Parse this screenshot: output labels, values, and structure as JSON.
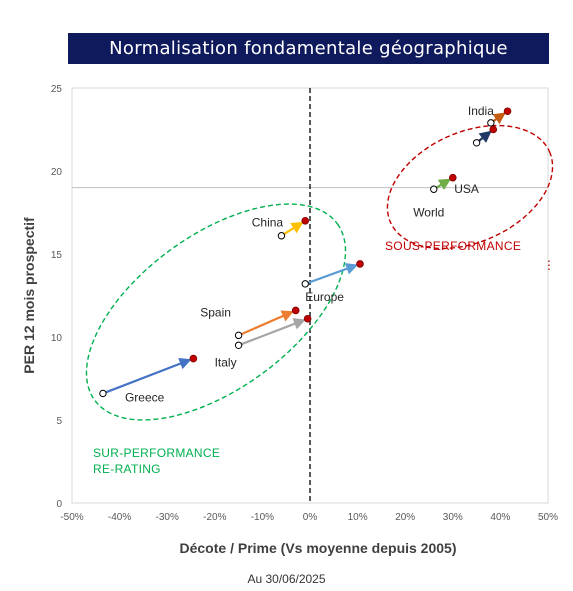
{
  "chart_data": {
    "type": "scatter",
    "title": "Normalisation fondamentale géographique",
    "xlabel": "Décote / Prime (Vs moyenne depuis 2005)",
    "ylabel": "PER 12 mois prospectif",
    "xlim": [
      -0.5,
      0.5
    ],
    "ylim": [
      0,
      25
    ],
    "x_ticks": [
      -0.5,
      -0.4,
      -0.3,
      -0.2,
      -0.1,
      0,
      0.1,
      0.2,
      0.3,
      0.4,
      0.5
    ],
    "x_tick_labels": [
      "-50%",
      "-40%",
      "-30%",
      "-20%",
      "-10%",
      "0%",
      "10%",
      "20%",
      "30%",
      "40%",
      "50%"
    ],
    "y_ticks": [
      0,
      5,
      10,
      15,
      20,
      25
    ],
    "y_tick_labels": [
      "0",
      "5",
      "10",
      "15",
      "20",
      "25"
    ],
    "grid": false,
    "reference_lines": {
      "vertical_x": 0,
      "horizontal_y": 19
    },
    "series": [
      {
        "name": "India",
        "from": [
          0.38,
          22.9
        ],
        "to": [
          0.415,
          23.6
        ],
        "color": "#c55a11"
      },
      {
        "name": "USA",
        "from": [
          0.35,
          21.7
        ],
        "to": [
          0.385,
          22.5
        ],
        "color": "#1f3864"
      },
      {
        "name": "World",
        "from": [
          0.26,
          18.9
        ],
        "to": [
          0.3,
          19.6
        ],
        "color": "#70ad47"
      },
      {
        "name": "China",
        "from": [
          -0.06,
          16.1
        ],
        "to": [
          -0.01,
          17.0
        ],
        "color": "#ffc000"
      },
      {
        "name": "Europe",
        "from": [
          -0.01,
          13.2
        ],
        "to": [
          0.105,
          14.4
        ],
        "color": "#5b9bd5"
      },
      {
        "name": "Spain",
        "from": [
          -0.15,
          10.1
        ],
        "to": [
          -0.03,
          11.6
        ],
        "color": "#ed7d31"
      },
      {
        "name": "Italy",
        "from": [
          -0.15,
          9.5
        ],
        "to": [
          -0.005,
          11.1
        ],
        "color": "#a5a5a5"
      },
      {
        "name": "Greece",
        "from": [
          -0.435,
          6.6
        ],
        "to": [
          -0.245,
          8.7
        ],
        "color": "#4472c4"
      }
    ],
    "annotations": {
      "underperformance": "SOUS-PERFORMANCE",
      "outperformance_line1": "SUR-PERFORMANCE",
      "outperformance_line2": "RE-RATING",
      "stray_mark": "⋮"
    },
    "colors": {
      "start_marker_fill": "#ffffff",
      "end_marker_fill": "#c00000",
      "sous_performance": "#c00000",
      "sur_performance": "#00b050",
      "axis_text": "#595959"
    }
  },
  "footer": {
    "date_text": "Au 30/06/2025"
  }
}
